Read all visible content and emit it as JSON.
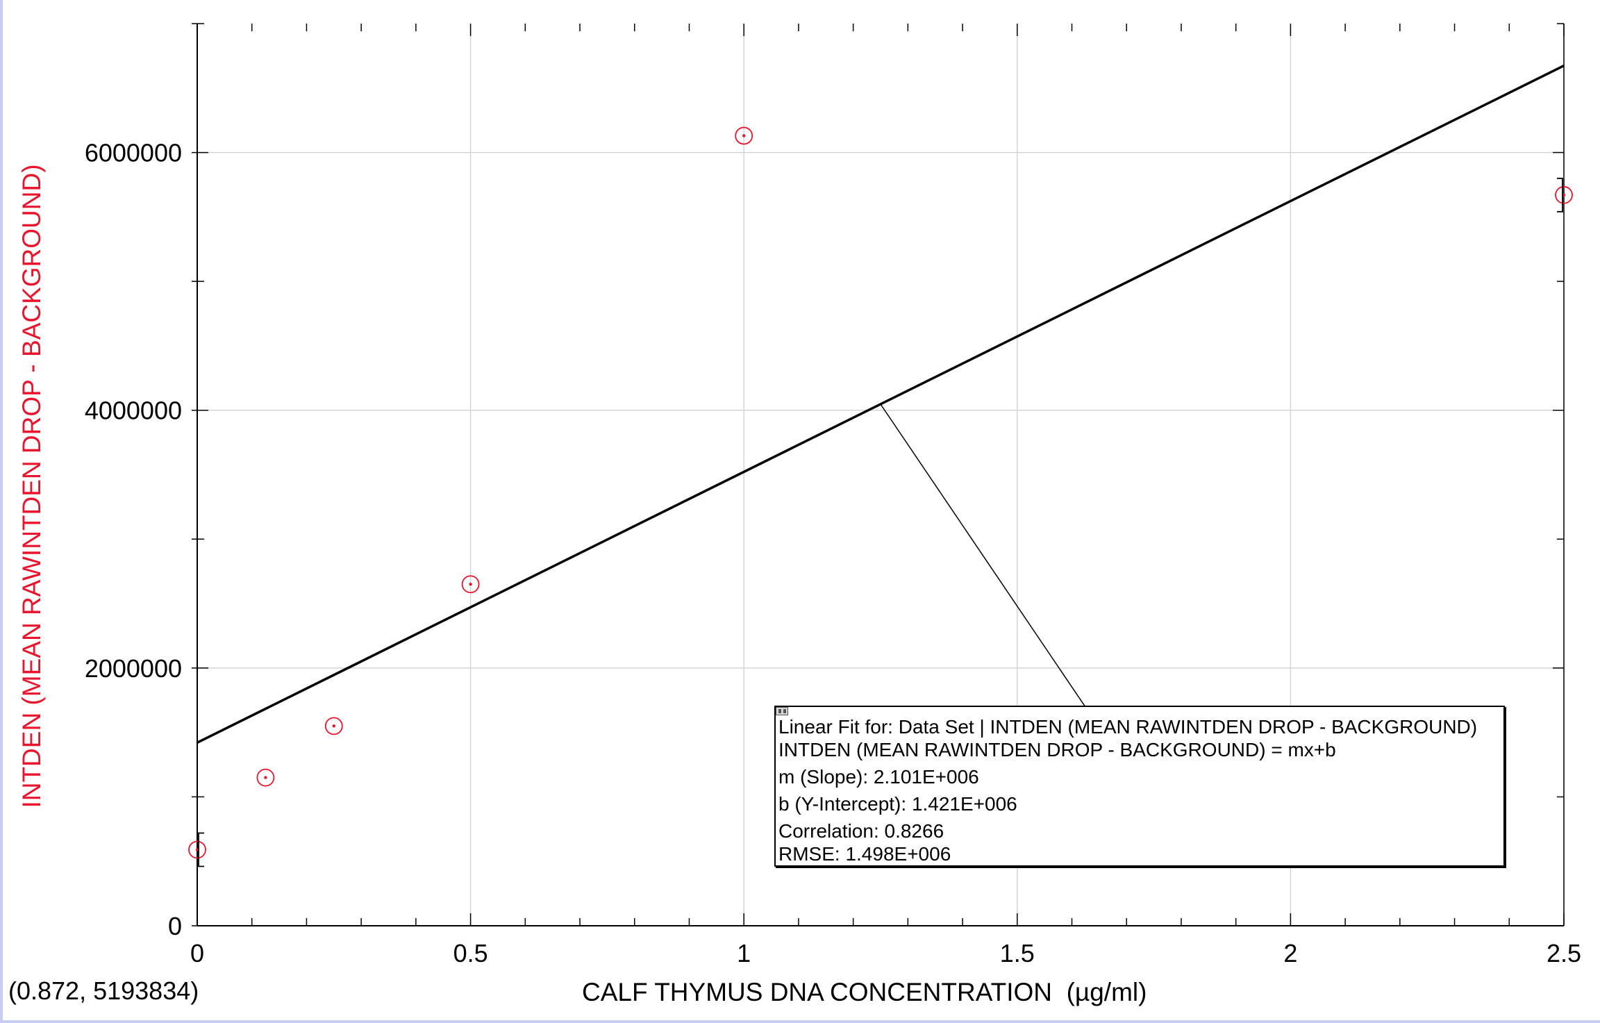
{
  "colors": {
    "data_points": "#e8152e",
    "fit_line": "#000000",
    "grid": "#d4d4d4",
    "y_label": "#e8152e",
    "window_edge": "#c9cdf2"
  },
  "chart_data": {
    "type": "scatter",
    "xlabel": "CALF THYMUS DNA CONCENTRATION  (µg/ml)",
    "ylabel": "INTDEN (MEAN RAWINTDEN DROP - BACKGROUND)",
    "xlim": [
      0,
      2.5
    ],
    "ylim": [
      0,
      7000000
    ],
    "x_ticks": [
      0,
      0.5,
      1,
      1.5,
      2,
      2.5
    ],
    "x_tick_labels": [
      "0",
      "0.5",
      "1",
      "1.5",
      "2",
      "2.5"
    ],
    "x_minor_step": 0.1,
    "y_ticks": [
      0,
      2000000,
      4000000,
      6000000
    ],
    "y_tick_labels": [
      "0",
      "2000000",
      "4000000",
      "6000000"
    ],
    "y_minor_step": 1000000,
    "grid": true,
    "series": [
      {
        "points": [
          {
            "x": 0,
            "y": 590000
          },
          {
            "x": 0.125,
            "y": 1150000
          },
          {
            "x": 0.25,
            "y": 1550000
          },
          {
            "x": 0.5,
            "y": 2650000
          },
          {
            "x": 1,
            "y": 6130000
          },
          {
            "x": 2.5,
            "y": 5670000
          }
        ]
      }
    ],
    "linear_fit": {
      "slope": 2101000,
      "intercept": 1421000
    },
    "annotation_anchor_x": 1.25,
    "annotation": {
      "title": "Linear Fit for: Data Set | INTDEN (MEAN RAWINTDEN DROP - BACKGROUND)",
      "equation": "INTDEN (MEAN RAWINTDEN DROP - BACKGROUND) = mx+b",
      "slope": "m (Slope): 2.101E+006",
      "intercept": "b (Y-Intercept): 1.421E+006",
      "correlation": "Correlation: 0.8266",
      "rmse": "RMSE: 1.498E+006"
    }
  },
  "cursor_readout": "(0.872, 5193834)"
}
